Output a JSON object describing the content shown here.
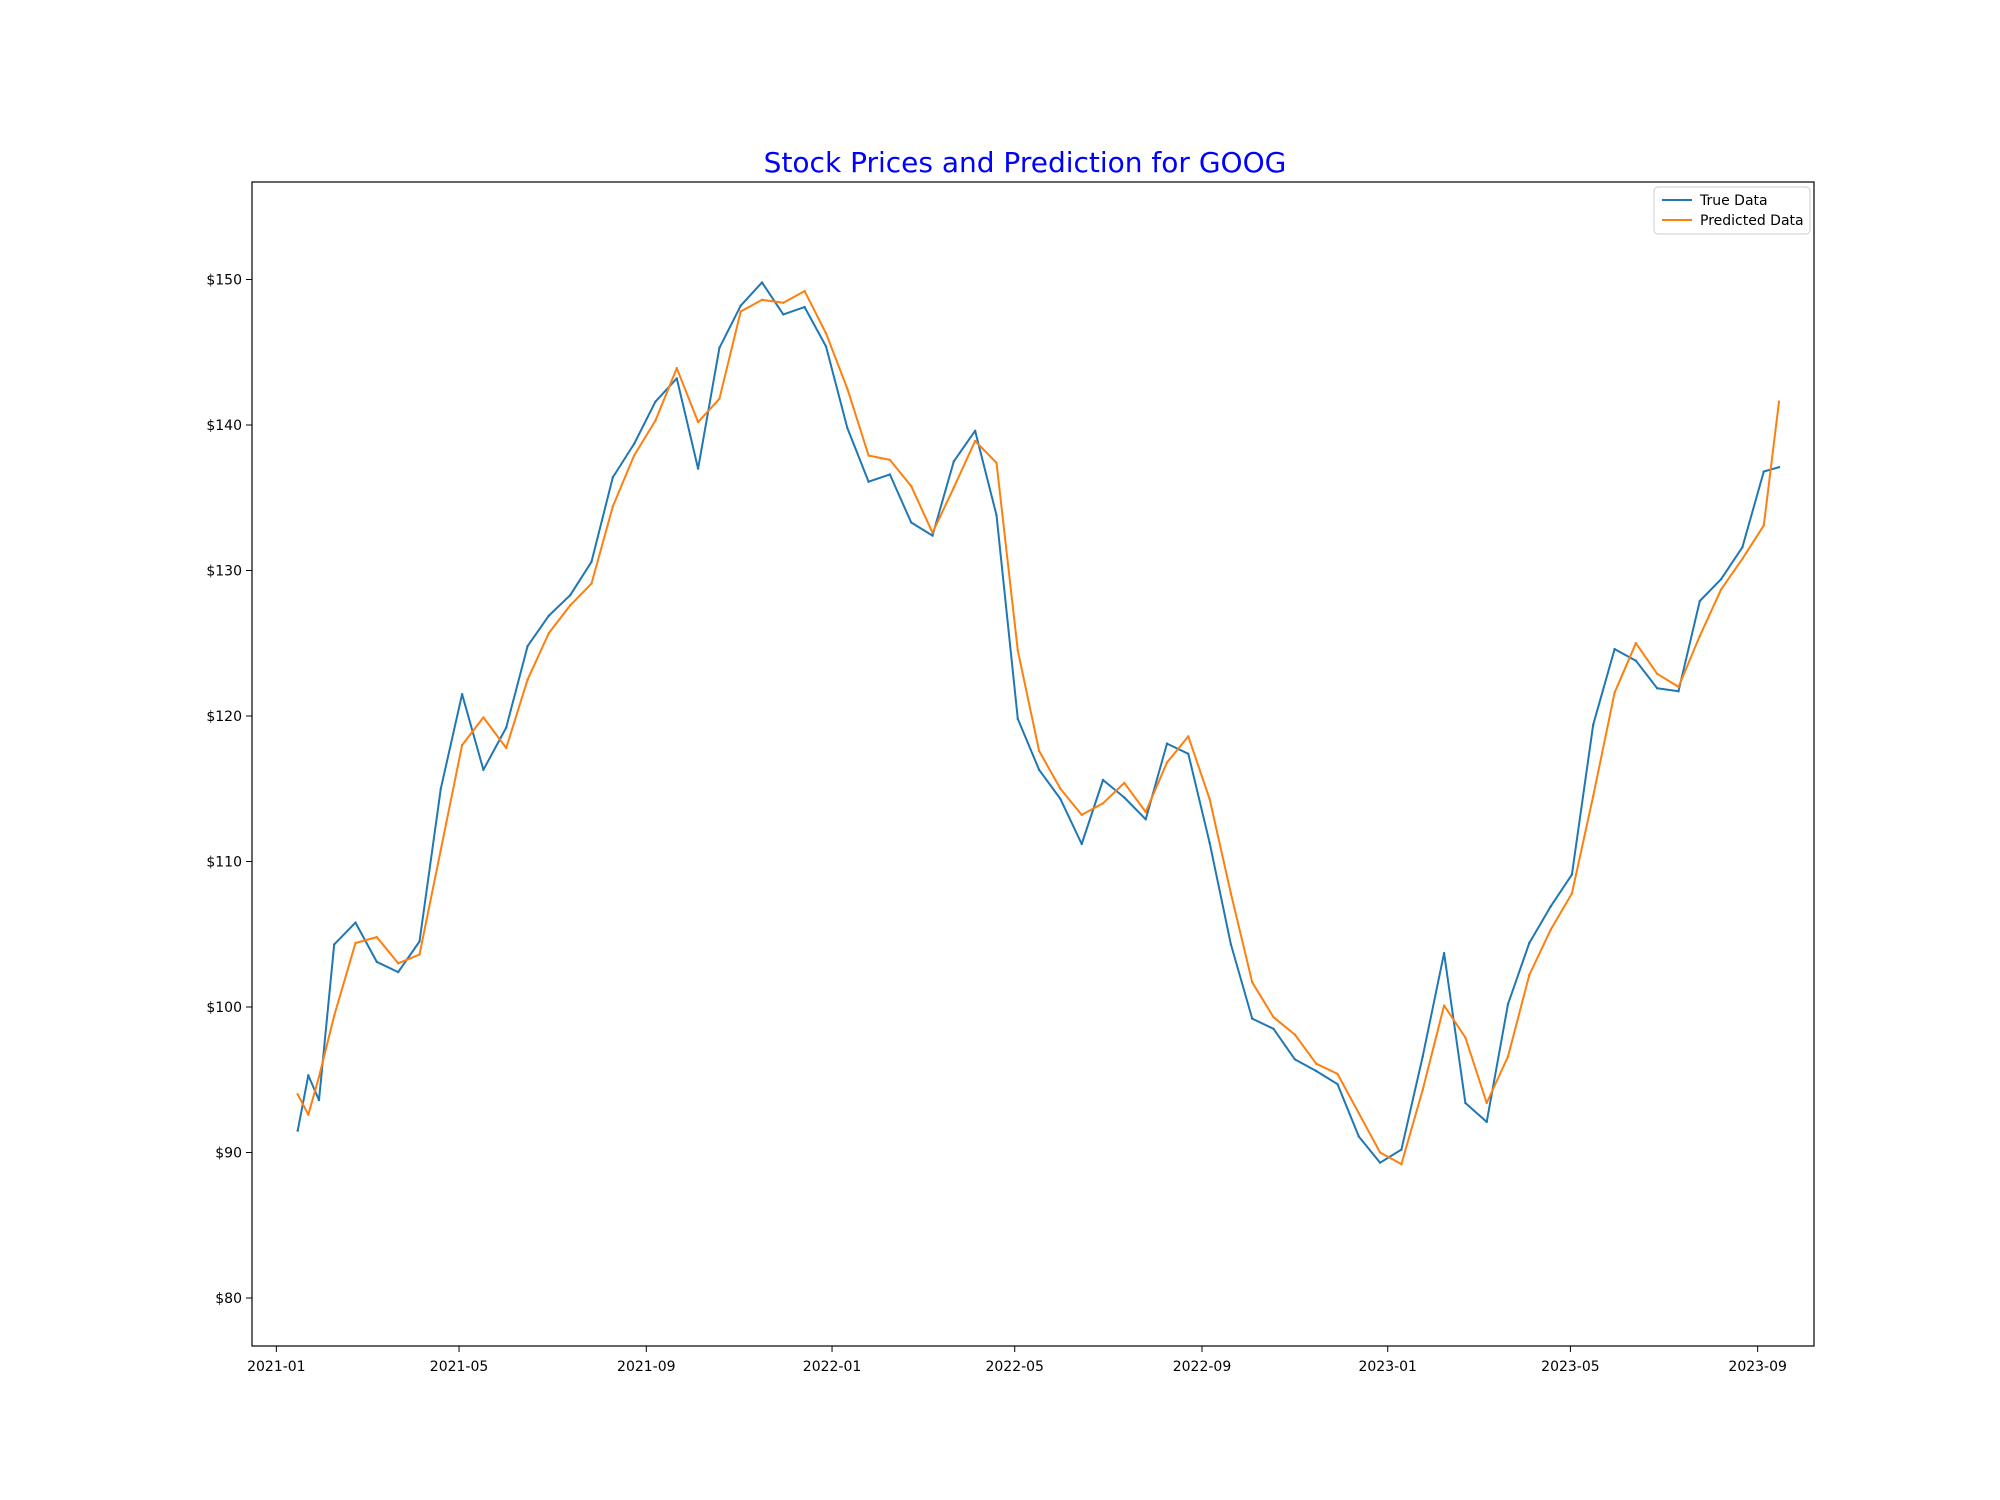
{
  "chart_data": {
    "type": "line",
    "title": "Stock Prices and Prediction for GOOG",
    "title_color": "#0000ff",
    "xlabel": "",
    "ylabel": "",
    "x_range": [
      "2020-12-16",
      "2023-10-08"
    ],
    "x_ticks": [
      "2021-01",
      "2021-05",
      "2021-09",
      "2022-01",
      "2022-05",
      "2022-09",
      "2023-01",
      "2023-05",
      "2023-09"
    ],
    "x_tick_dates": [
      "2021-01-01",
      "2021-05-01",
      "2021-09-01",
      "2022-01-01",
      "2022-05-01",
      "2022-09-01",
      "2023-01-01",
      "2023-05-01",
      "2023-09-01"
    ],
    "ylim": [
      76.7,
      156.7
    ],
    "y_ticks": [
      80,
      90,
      100,
      110,
      120,
      130,
      140,
      150
    ],
    "y_tick_labels": [
      "$80",
      "$90",
      "$100",
      "$110",
      "$120",
      "$130",
      "$140",
      "$150"
    ],
    "grid": false,
    "legend_position": "top-right",
    "series": [
      {
        "name": "True Data",
        "color": "#1f77b4",
        "x": [
          "2021-01-15",
          "2021-01-22",
          "2021-01-29",
          "2021-02-08",
          "2021-02-22",
          "2021-03-08",
          "2021-03-22",
          "2021-04-05",
          "2021-04-19",
          "2021-05-03",
          "2021-05-17",
          "2021-06-01",
          "2021-06-15",
          "2021-06-29",
          "2021-07-13",
          "2021-07-27",
          "2021-08-10",
          "2021-08-24",
          "2021-09-07",
          "2021-09-21",
          "2021-10-05",
          "2021-10-19",
          "2021-11-02",
          "2021-11-16",
          "2021-11-30",
          "2021-12-14",
          "2021-12-28",
          "2022-01-11",
          "2022-01-25",
          "2022-02-08",
          "2022-02-22",
          "2022-03-08",
          "2022-03-22",
          "2022-04-05",
          "2022-04-19",
          "2022-05-03",
          "2022-05-17",
          "2022-05-31",
          "2022-06-14",
          "2022-06-28",
          "2022-07-12",
          "2022-07-26",
          "2022-08-09",
          "2022-08-23",
          "2022-09-06",
          "2022-09-20",
          "2022-10-04",
          "2022-10-18",
          "2022-11-01",
          "2022-11-15",
          "2022-11-29",
          "2022-12-13",
          "2022-12-27",
          "2023-01-10",
          "2023-01-24",
          "2023-02-07",
          "2023-02-21",
          "2023-03-07",
          "2023-03-21",
          "2023-04-04",
          "2023-04-18",
          "2023-05-02",
          "2023-05-16",
          "2023-05-30",
          "2023-06-13",
          "2023-06-27",
          "2023-07-11",
          "2023-07-25",
          "2023-08-08",
          "2023-08-22",
          "2023-09-05",
          "2023-09-15"
        ],
        "y": [
          91.5,
          95.3,
          93.6,
          104.3,
          105.8,
          103.1,
          102.4,
          104.5,
          115.0,
          121.5,
          116.3,
          119.2,
          124.8,
          126.9,
          128.3,
          130.6,
          136.4,
          138.7,
          141.6,
          143.2,
          137.0,
          145.3,
          148.2,
          149.8,
          147.6,
          148.1,
          145.4,
          139.8,
          136.1,
          136.6,
          133.3,
          132.4,
          137.5,
          139.6,
          133.8,
          119.8,
          116.3,
          114.3,
          111.2,
          115.6,
          114.4,
          112.9,
          118.1,
          117.4,
          111.3,
          104.3,
          99.2,
          98.5,
          96.4,
          95.6,
          94.7,
          91.1,
          89.3,
          90.2,
          96.6,
          103.7,
          93.4,
          92.1,
          100.2,
          104.4,
          106.9,
          109.1,
          119.4,
          124.6,
          123.8,
          121.9,
          121.7,
          127.9,
          129.4,
          131.6,
          136.8,
          137.1
        ]
      },
      {
        "name": "Predicted Data",
        "color": "#ff7f0e",
        "x": [
          "2021-01-15",
          "2021-01-22",
          "2021-01-29",
          "2021-02-08",
          "2021-02-22",
          "2021-03-08",
          "2021-03-22",
          "2021-04-05",
          "2021-04-19",
          "2021-05-03",
          "2021-05-17",
          "2021-06-01",
          "2021-06-15",
          "2021-06-29",
          "2021-07-13",
          "2021-07-27",
          "2021-08-10",
          "2021-08-24",
          "2021-09-07",
          "2021-09-21",
          "2021-10-05",
          "2021-10-19",
          "2021-11-02",
          "2021-11-16",
          "2021-11-30",
          "2021-12-14",
          "2021-12-28",
          "2022-01-11",
          "2022-01-25",
          "2022-02-08",
          "2022-02-22",
          "2022-03-08",
          "2022-03-22",
          "2022-04-05",
          "2022-04-19",
          "2022-05-03",
          "2022-05-17",
          "2022-05-31",
          "2022-06-14",
          "2022-06-28",
          "2022-07-12",
          "2022-07-26",
          "2022-08-09",
          "2022-08-23",
          "2022-09-06",
          "2022-09-20",
          "2022-10-04",
          "2022-10-18",
          "2022-11-01",
          "2022-11-15",
          "2022-11-29",
          "2022-12-13",
          "2022-12-27",
          "2023-01-10",
          "2023-01-24",
          "2023-02-07",
          "2023-02-21",
          "2023-03-07",
          "2023-03-21",
          "2023-04-04",
          "2023-04-18",
          "2023-05-02",
          "2023-05-16",
          "2023-05-30",
          "2023-06-13",
          "2023-06-27",
          "2023-07-11",
          "2023-07-25",
          "2023-08-08",
          "2023-08-22",
          "2023-09-05",
          "2023-09-15"
        ],
        "y": [
          94.0,
          92.6,
          95.2,
          99.4,
          104.4,
          104.8,
          103.0,
          103.6,
          110.8,
          118.0,
          119.9,
          117.8,
          122.5,
          125.7,
          127.6,
          129.1,
          134.4,
          137.9,
          140.3,
          143.9,
          140.2,
          141.8,
          147.8,
          148.6,
          148.4,
          149.2,
          146.3,
          142.5,
          137.9,
          137.6,
          135.8,
          132.6,
          135.7,
          138.9,
          137.4,
          124.5,
          117.6,
          115.0,
          113.2,
          114.0,
          115.4,
          113.4,
          116.8,
          118.6,
          114.3,
          107.8,
          101.7,
          99.3,
          98.1,
          96.1,
          95.4,
          92.7,
          90.0,
          89.2,
          94.3,
          100.1,
          97.9,
          93.4,
          96.6,
          102.2,
          105.3,
          107.8,
          114.5,
          121.6,
          125.0,
          122.9,
          122.0,
          125.5,
          128.7,
          130.8,
          133.1,
          141.6
        ]
      }
    ]
  }
}
